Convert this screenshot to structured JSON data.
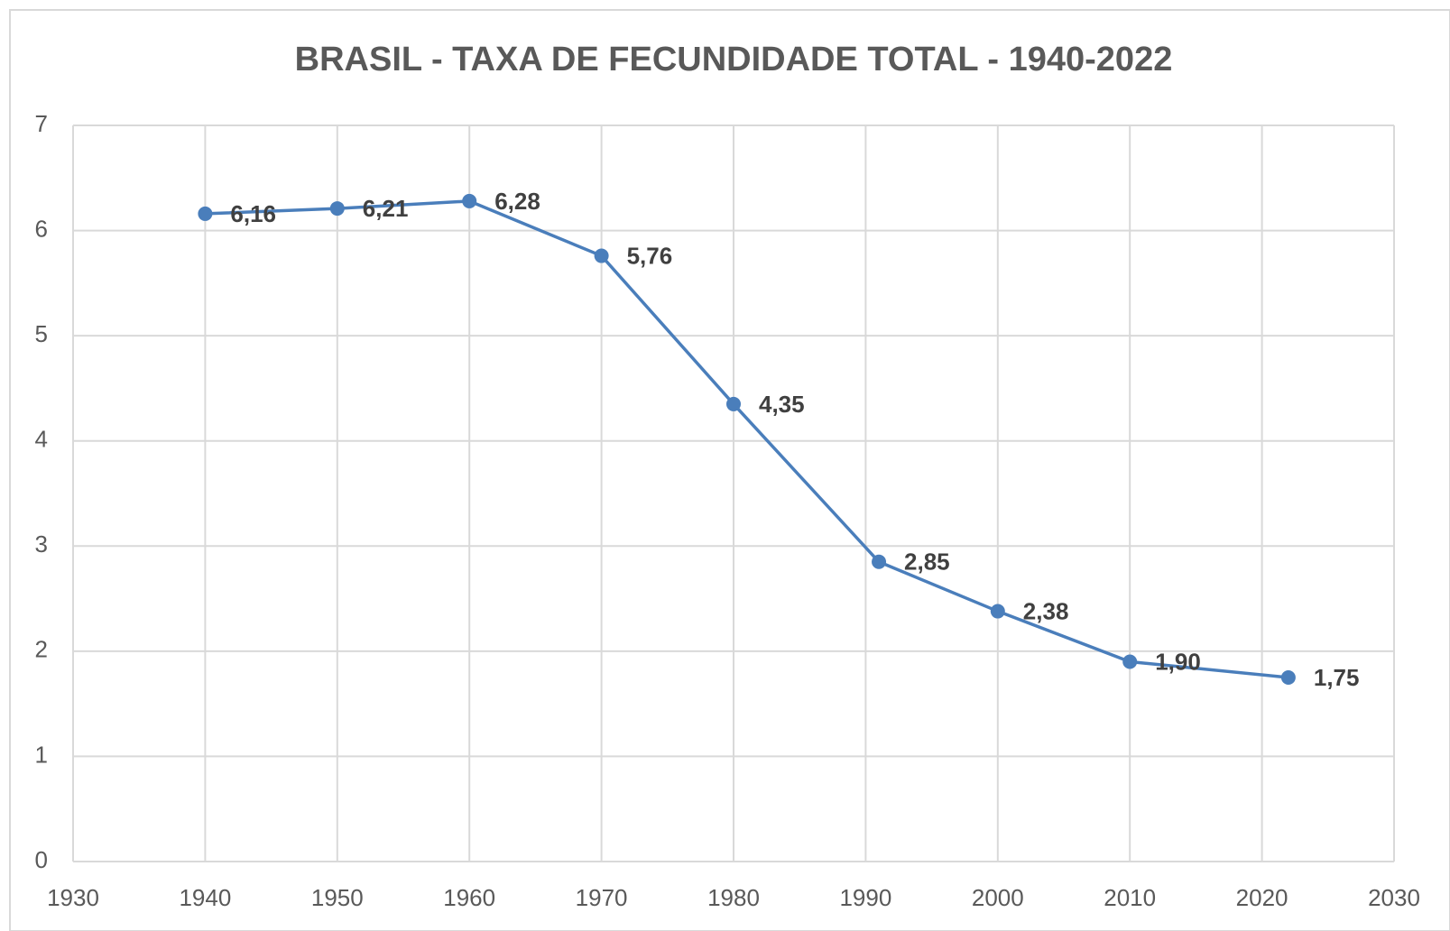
{
  "chart_data": {
    "type": "line",
    "title": "BRASIL - TAXA DE FECUNDIDADE TOTAL - 1940-2022",
    "x": [
      1940,
      1950,
      1960,
      1970,
      1980,
      1991,
      2000,
      2010,
      2022
    ],
    "series": [
      {
        "name": "Taxa de fecundidade total",
        "color": "#4a7ebb",
        "values": [
          6.16,
          6.21,
          6.28,
          5.76,
          4.35,
          2.85,
          2.38,
          1.9,
          1.75
        ],
        "value_labels": [
          "6,16",
          "6,21",
          "6,28",
          "5,76",
          "4,35",
          "2,85",
          "2,38",
          "1,90",
          "1,75"
        ]
      }
    ],
    "xlim": [
      1930,
      2030
    ],
    "xticks": [
      1930,
      1940,
      1950,
      1960,
      1970,
      1980,
      1990,
      2000,
      2010,
      2020,
      2030
    ],
    "ylim": [
      0,
      7
    ],
    "yticks": [
      0,
      1,
      2,
      3,
      4,
      5,
      6,
      7
    ],
    "grid": true
  }
}
